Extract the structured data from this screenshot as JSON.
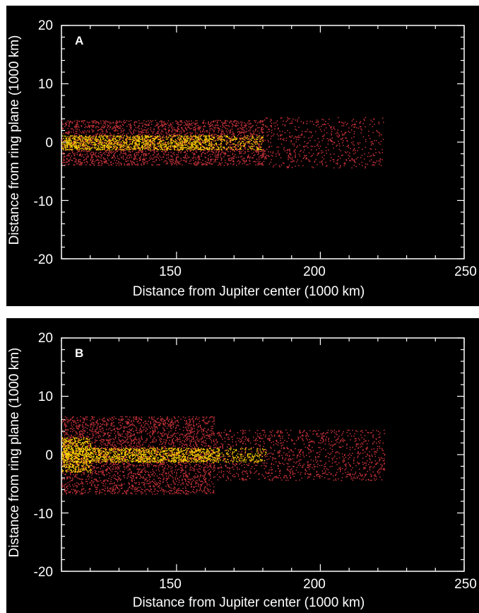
{
  "chart_data": [
    {
      "type": "scatter",
      "panel_label": "A",
      "xlabel": "Distance from Jupiter center (1000 km)",
      "ylabel": "Distance from ring plane (1000 km)",
      "xlim": [
        110,
        250
      ],
      "ylim": [
        -20,
        20
      ],
      "xticks": [
        "150",
        "200",
        "250"
      ],
      "yticks": [
        "20",
        "10",
        "0",
        "-10",
        "-20"
      ],
      "grid": false,
      "background": "#000000",
      "axis_color": "#ffffff",
      "series": [
        {
          "color": "#c8323a",
          "regions": [
            {
              "x": [
                110,
                180
              ],
              "z": [
                -3.8,
                3.8
              ],
              "density": 0.55
            },
            {
              "x": [
                180,
                222
              ],
              "z": [
                -4.3,
                4.3
              ],
              "density": 0.2
            }
          ]
        },
        {
          "color": "#ffd700",
          "regions": [
            {
              "x": [
                110,
                162
              ],
              "z": [
                -1.2,
                1.2
              ],
              "density": 0.9
            },
            {
              "x": [
                162,
                180
              ],
              "z": [
                -1.2,
                1.2
              ],
              "density": 0.45
            }
          ]
        }
      ]
    },
    {
      "type": "scatter",
      "panel_label": "B",
      "xlabel": "Distance from Jupiter center (1000 km)",
      "ylabel": "Distance from ring plane (1000 km)",
      "xlim": [
        110,
        250
      ],
      "ylim": [
        -20,
        20
      ],
      "xticks": [
        "150",
        "200",
        "250"
      ],
      "yticks": [
        "20",
        "10",
        "0",
        "-10",
        "-20"
      ],
      "grid": false,
      "background": "#000000",
      "axis_color": "#ffffff",
      "series": [
        {
          "color": "#c8323a",
          "regions": [
            {
              "x": [
                110,
                163
              ],
              "z": [
                -6.6,
                6.6
              ],
              "density": 0.5
            },
            {
              "x": [
                163,
                222
              ],
              "z": [
                -4.3,
                4.3
              ],
              "density": 0.3
            }
          ]
        },
        {
          "color": "#ffd700",
          "regions": [
            {
              "x": [
                110,
                120
              ],
              "z": [
                -3.0,
                3.0
              ],
              "density": 0.7
            },
            {
              "x": [
                110,
                165
              ],
              "z": [
                -1.2,
                1.2
              ],
              "density": 0.9
            },
            {
              "x": [
                165,
                181
              ],
              "z": [
                -1.2,
                1.2
              ],
              "density": 0.45
            }
          ]
        }
      ]
    }
  ]
}
